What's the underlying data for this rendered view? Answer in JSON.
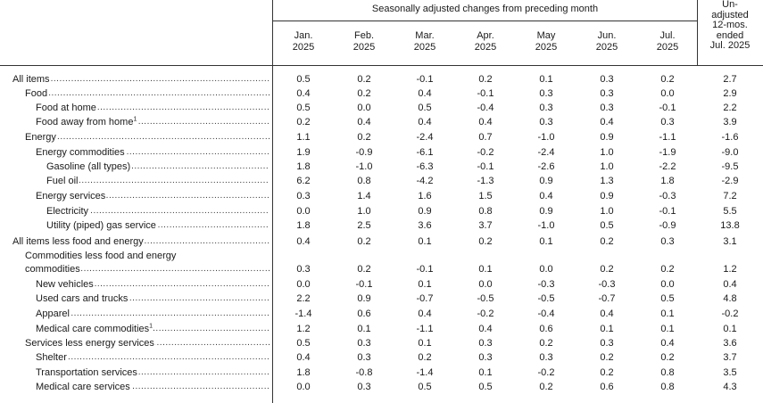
{
  "header": {
    "span_title": "Seasonally adjusted changes from preceding month",
    "months": [
      {
        "line1": "Jan.",
        "line2": "2025"
      },
      {
        "line1": "Feb.",
        "line2": "2025"
      },
      {
        "line1": "Mar.",
        "line2": "2025"
      },
      {
        "line1": "Apr.",
        "line2": "2025"
      },
      {
        "line1": "May",
        "line2": "2025"
      },
      {
        "line1": "Jun.",
        "line2": "2025"
      },
      {
        "line1": "Jul.",
        "line2": "2025"
      }
    ],
    "unadjusted": [
      "Un-",
      "adjusted",
      "12-mos.",
      "ended",
      "Jul. 2025"
    ]
  },
  "rows": [
    {
      "label": "All items",
      "indent": 0,
      "values": [
        "0.5",
        "0.2",
        "-0.1",
        "0.2",
        "0.1",
        "0.3",
        "0.2"
      ],
      "unadj": "2.7"
    },
    {
      "label": "Food",
      "indent": 1,
      "values": [
        "0.4",
        "0.2",
        "0.4",
        "-0.1",
        "0.3",
        "0.3",
        "0.0"
      ],
      "unadj": "2.9"
    },
    {
      "label": "Food at home",
      "indent": 2,
      "values": [
        "0.5",
        "0.0",
        "0.5",
        "-0.4",
        "0.3",
        "0.3",
        "-0.1"
      ],
      "unadj": "2.2"
    },
    {
      "label": "Food away from home",
      "sup": "1",
      "indent": 2,
      "values": [
        "0.2",
        "0.4",
        "0.4",
        "0.4",
        "0.3",
        "0.4",
        "0.3"
      ],
      "unadj": "3.9"
    },
    {
      "label": "Energy",
      "indent": 1,
      "values": [
        "1.1",
        "0.2",
        "-2.4",
        "0.7",
        "-1.0",
        "0.9",
        "-1.1"
      ],
      "unadj": "-1.6"
    },
    {
      "label": "Energy commodities",
      "indent": 2,
      "values": [
        "1.9",
        "-0.9",
        "-6.1",
        "-0.2",
        "-2.4",
        "1.0",
        "-1.9"
      ],
      "unadj": "-9.0"
    },
    {
      "label": "Gasoline (all types)",
      "indent": 3,
      "values": [
        "1.8",
        "-1.0",
        "-6.3",
        "-0.1",
        "-2.6",
        "1.0",
        "-2.2"
      ],
      "unadj": "-9.5"
    },
    {
      "label": "Fuel oil",
      "indent": 3,
      "values": [
        "6.2",
        "0.8",
        "-4.2",
        "-1.3",
        "0.9",
        "1.3",
        "1.8"
      ],
      "unadj": "-2.9"
    },
    {
      "label": "Energy services",
      "indent": 2,
      "values": [
        "0.3",
        "1.4",
        "1.6",
        "1.5",
        "0.4",
        "0.9",
        "-0.3"
      ],
      "unadj": "7.2"
    },
    {
      "label": "Electricity",
      "indent": 3,
      "values": [
        "0.0",
        "1.0",
        "0.9",
        "0.8",
        "0.9",
        "1.0",
        "-0.1"
      ],
      "unadj": "5.5"
    },
    {
      "label": "Utility (piped) gas service",
      "indent": 3,
      "values": [
        "1.8",
        "2.5",
        "3.6",
        "3.7",
        "-1.0",
        "0.5",
        "-0.9"
      ],
      "unadj": "13.8"
    },
    {
      "label": "All items less food and energy",
      "indent": 0,
      "values": [
        "0.4",
        "0.2",
        "0.1",
        "0.2",
        "0.1",
        "0.2",
        "0.3"
      ],
      "unadj": "3.1"
    },
    {
      "label": "Commodities less food and energy",
      "indent": 1,
      "nodots": true,
      "values": [],
      "unadj": ""
    },
    {
      "label": "commodities",
      "indent": 1,
      "values": [
        "0.3",
        "0.2",
        "-0.1",
        "0.1",
        "0.0",
        "0.2",
        "0.2"
      ],
      "unadj": "1.2"
    },
    {
      "label": "New vehicles",
      "indent": 2,
      "values": [
        "0.0",
        "-0.1",
        "0.1",
        "0.0",
        "-0.3",
        "-0.3",
        "0.0"
      ],
      "unadj": "0.4"
    },
    {
      "label": "Used cars and trucks",
      "indent": 2,
      "values": [
        "2.2",
        "0.9",
        "-0.7",
        "-0.5",
        "-0.5",
        "-0.7",
        "0.5"
      ],
      "unadj": "4.8"
    },
    {
      "label": "Apparel",
      "indent": 2,
      "values": [
        "-1.4",
        "0.6",
        "0.4",
        "-0.2",
        "-0.4",
        "0.4",
        "0.1"
      ],
      "unadj": "-0.2"
    },
    {
      "label": "Medical care commodities",
      "sup": "1",
      "indent": 2,
      "values": [
        "1.2",
        "0.1",
        "-1.1",
        "0.4",
        "0.6",
        "0.1",
        "0.1"
      ],
      "unadj": "0.1"
    },
    {
      "label": "Services less energy services",
      "indent": 1,
      "values": [
        "0.5",
        "0.3",
        "0.1",
        "0.3",
        "0.2",
        "0.3",
        "0.4"
      ],
      "unadj": "3.6"
    },
    {
      "label": "Shelter",
      "indent": 2,
      "values": [
        "0.4",
        "0.3",
        "0.2",
        "0.3",
        "0.3",
        "0.2",
        "0.2"
      ],
      "unadj": "3.7"
    },
    {
      "label": "Transportation services",
      "indent": 2,
      "values": [
        "1.8",
        "-0.8",
        "-1.4",
        "0.1",
        "-0.2",
        "0.2",
        "0.8"
      ],
      "unadj": "3.5"
    },
    {
      "label": "Medical care services",
      "indent": 2,
      "values": [
        "0.0",
        "0.3",
        "0.5",
        "0.5",
        "0.2",
        "0.6",
        "0.8"
      ],
      "unadj": "4.3"
    }
  ]
}
